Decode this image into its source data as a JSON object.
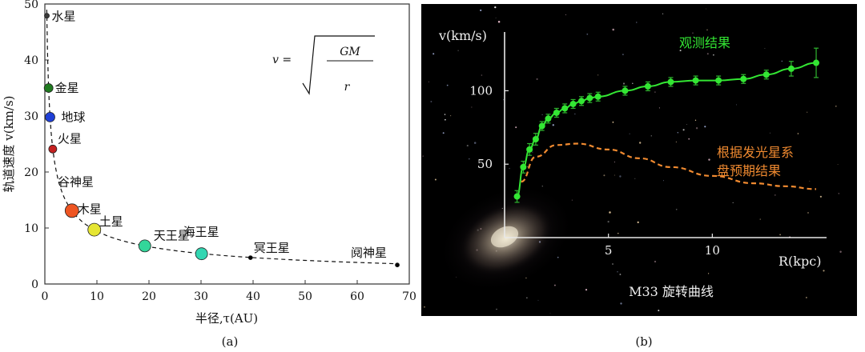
{
  "panel_a": {
    "caption": "(a)",
    "formula": {
      "lhs": "v =",
      "numerator": "GM",
      "denominator": "r"
    },
    "x_unit": "AU",
    "y_unit": "km/s"
  },
  "panel_b": {
    "caption": "(b)",
    "title": "M33 旋转曲线"
  },
  "colors": {
    "observed": "#33e633",
    "predicted": "#f08a30",
    "bg_dark": "#000000",
    "axis_light": "#e8e8e8"
  },
  "chart_data": [
    {
      "type": "scatter",
      "xlabel": "半径,τ(AU)",
      "ylabel": "轨道速度 v(km/s)",
      "xlim": [
        0,
        70
      ],
      "ylim": [
        0,
        50
      ],
      "xticks": [
        0,
        10,
        20,
        30,
        40,
        50,
        60,
        70
      ],
      "yticks": [
        0,
        10,
        20,
        30,
        40,
        50
      ],
      "grid": false,
      "series": [
        {
          "points": [
            {
              "label": "水星",
              "x": 0.39,
              "y": 47.9,
              "color": "#3a3a3a"
            },
            {
              "label": "金星",
              "x": 0.72,
              "y": 35.0,
              "color": "#1f7a1f"
            },
            {
              "label": "地球",
              "x": 1.0,
              "y": 29.8,
              "color": "#1f3fd6"
            },
            {
              "label": "火星",
              "x": 1.52,
              "y": 24.1,
              "color": "#c42020"
            },
            {
              "label": "谷神星",
              "x": 2.77,
              "y": 17.9,
              "color": ""
            },
            {
              "label": "木星",
              "x": 5.2,
              "y": 13.1,
              "color": "#ee5522"
            },
            {
              "label": "土星",
              "x": 9.5,
              "y": 9.7,
              "color": "#e6e633"
            },
            {
              "label": "天王星",
              "x": 19.2,
              "y": 6.8,
              "color": "#33d69a"
            },
            {
              "label": "海王星",
              "x": 30.1,
              "y": 5.4,
              "color": "#33d6b2"
            },
            {
              "label": "冥王星",
              "x": 39.5,
              "y": 4.7,
              "color": "#000000"
            },
            {
              "label": "阋神星",
              "x": 67.7,
              "y": 3.4,
              "color": "#000000"
            }
          ]
        }
      ]
    },
    {
      "type": "line",
      "xlabel": "R(kpc)",
      "ylabel": "v(km/s)",
      "xlim": [
        0,
        15.5
      ],
      "ylim": [
        0,
        140
      ],
      "xticks": [
        5,
        10
      ],
      "yticks": [
        50,
        100
      ],
      "grid": false,
      "series": [
        {
          "name": "观测结果",
          "style": "points+errorbars+fit",
          "points": [
            {
              "x": 0.6,
              "y": 28,
              "err": 4
            },
            {
              "x": 0.9,
              "y": 48,
              "err": 4
            },
            {
              "x": 1.2,
              "y": 60,
              "err": 4
            },
            {
              "x": 1.5,
              "y": 67,
              "err": 4
            },
            {
              "x": 1.8,
              "y": 76,
              "err": 3
            },
            {
              "x": 2.1,
              "y": 81,
              "err": 3
            },
            {
              "x": 2.5,
              "y": 85,
              "err": 3
            },
            {
              "x": 2.9,
              "y": 88,
              "err": 3
            },
            {
              "x": 3.3,
              "y": 91,
              "err": 3
            },
            {
              "x": 3.7,
              "y": 93,
              "err": 3
            },
            {
              "x": 4.1,
              "y": 95,
              "err": 3
            },
            {
              "x": 4.5,
              "y": 96,
              "err": 3
            },
            {
              "x": 5.8,
              "y": 100,
              "err": 3
            },
            {
              "x": 6.9,
              "y": 103,
              "err": 3
            },
            {
              "x": 8.0,
              "y": 106,
              "err": 3
            },
            {
              "x": 9.2,
              "y": 107,
              "err": 3
            },
            {
              "x": 10.3,
              "y": 107,
              "err": 3
            },
            {
              "x": 11.5,
              "y": 108,
              "err": 3
            },
            {
              "x": 12.6,
              "y": 111,
              "err": 3
            },
            {
              "x": 13.8,
              "y": 115,
              "err": 5
            },
            {
              "x": 15.0,
              "y": 119,
              "err": 10
            }
          ]
        },
        {
          "name": "根据发光星系盘预期结果",
          "style": "dashed",
          "points": [
            {
              "x": 0.8,
              "y": 38
            },
            {
              "x": 1.5,
              "y": 55
            },
            {
              "x": 2.5,
              "y": 63
            },
            {
              "x": 3.5,
              "y": 64
            },
            {
              "x": 5.0,
              "y": 60
            },
            {
              "x": 6.5,
              "y": 54
            },
            {
              "x": 8.0,
              "y": 48
            },
            {
              "x": 10.0,
              "y": 42
            },
            {
              "x": 12.0,
              "y": 37
            },
            {
              "x": 13.5,
              "y": 35
            },
            {
              "x": 15.0,
              "y": 33
            }
          ]
        }
      ]
    }
  ]
}
